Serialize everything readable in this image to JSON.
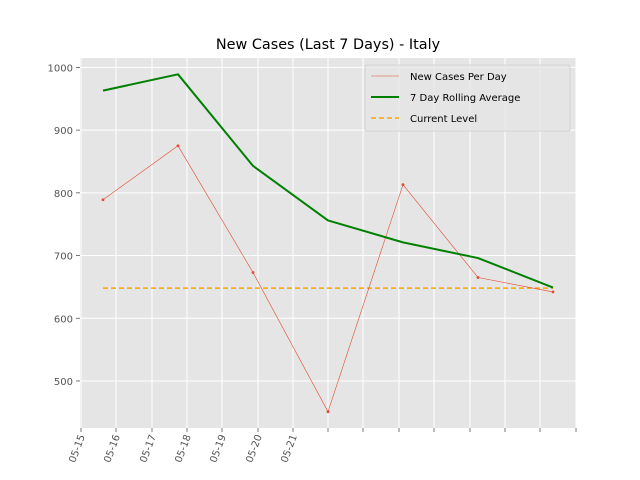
{
  "chart_data": {
    "type": "line",
    "title": "New Cases (Last 7 Days) - Italy",
    "xlabel": "",
    "ylabel": "",
    "x_tick_labels": [
      "05-15",
      "05-16",
      "05-17",
      "05-18",
      "05-19",
      "05-20",
      "05-21"
    ],
    "x": [
      "05-15",
      "05-16",
      "05-17",
      "05-18",
      "05-19",
      "05-20",
      "05-21"
    ],
    "ylim": [
      425,
      1015
    ],
    "y_ticks": [
      500,
      600,
      700,
      800,
      900,
      1000
    ],
    "grid": true,
    "legend_position": "top-right",
    "series": [
      {
        "name": "New Cases Per Day",
        "values": [
          789,
          875,
          673,
          451,
          813,
          665,
          642
        ],
        "color": "#e24a33",
        "style": "thin-solid",
        "markers": true
      },
      {
        "name": "7 Day Rolling Average",
        "values": [
          963,
          989,
          843,
          756,
          721,
          696,
          649
        ],
        "color": "#008000",
        "style": "thick-solid",
        "markers": false
      },
      {
        "name": "Current Level",
        "values": [
          648,
          648,
          648,
          648,
          648,
          648,
          648
        ],
        "color": "#ffa500",
        "style": "dashed",
        "markers": false
      }
    ],
    "background_color": "#e5e5e5"
  }
}
